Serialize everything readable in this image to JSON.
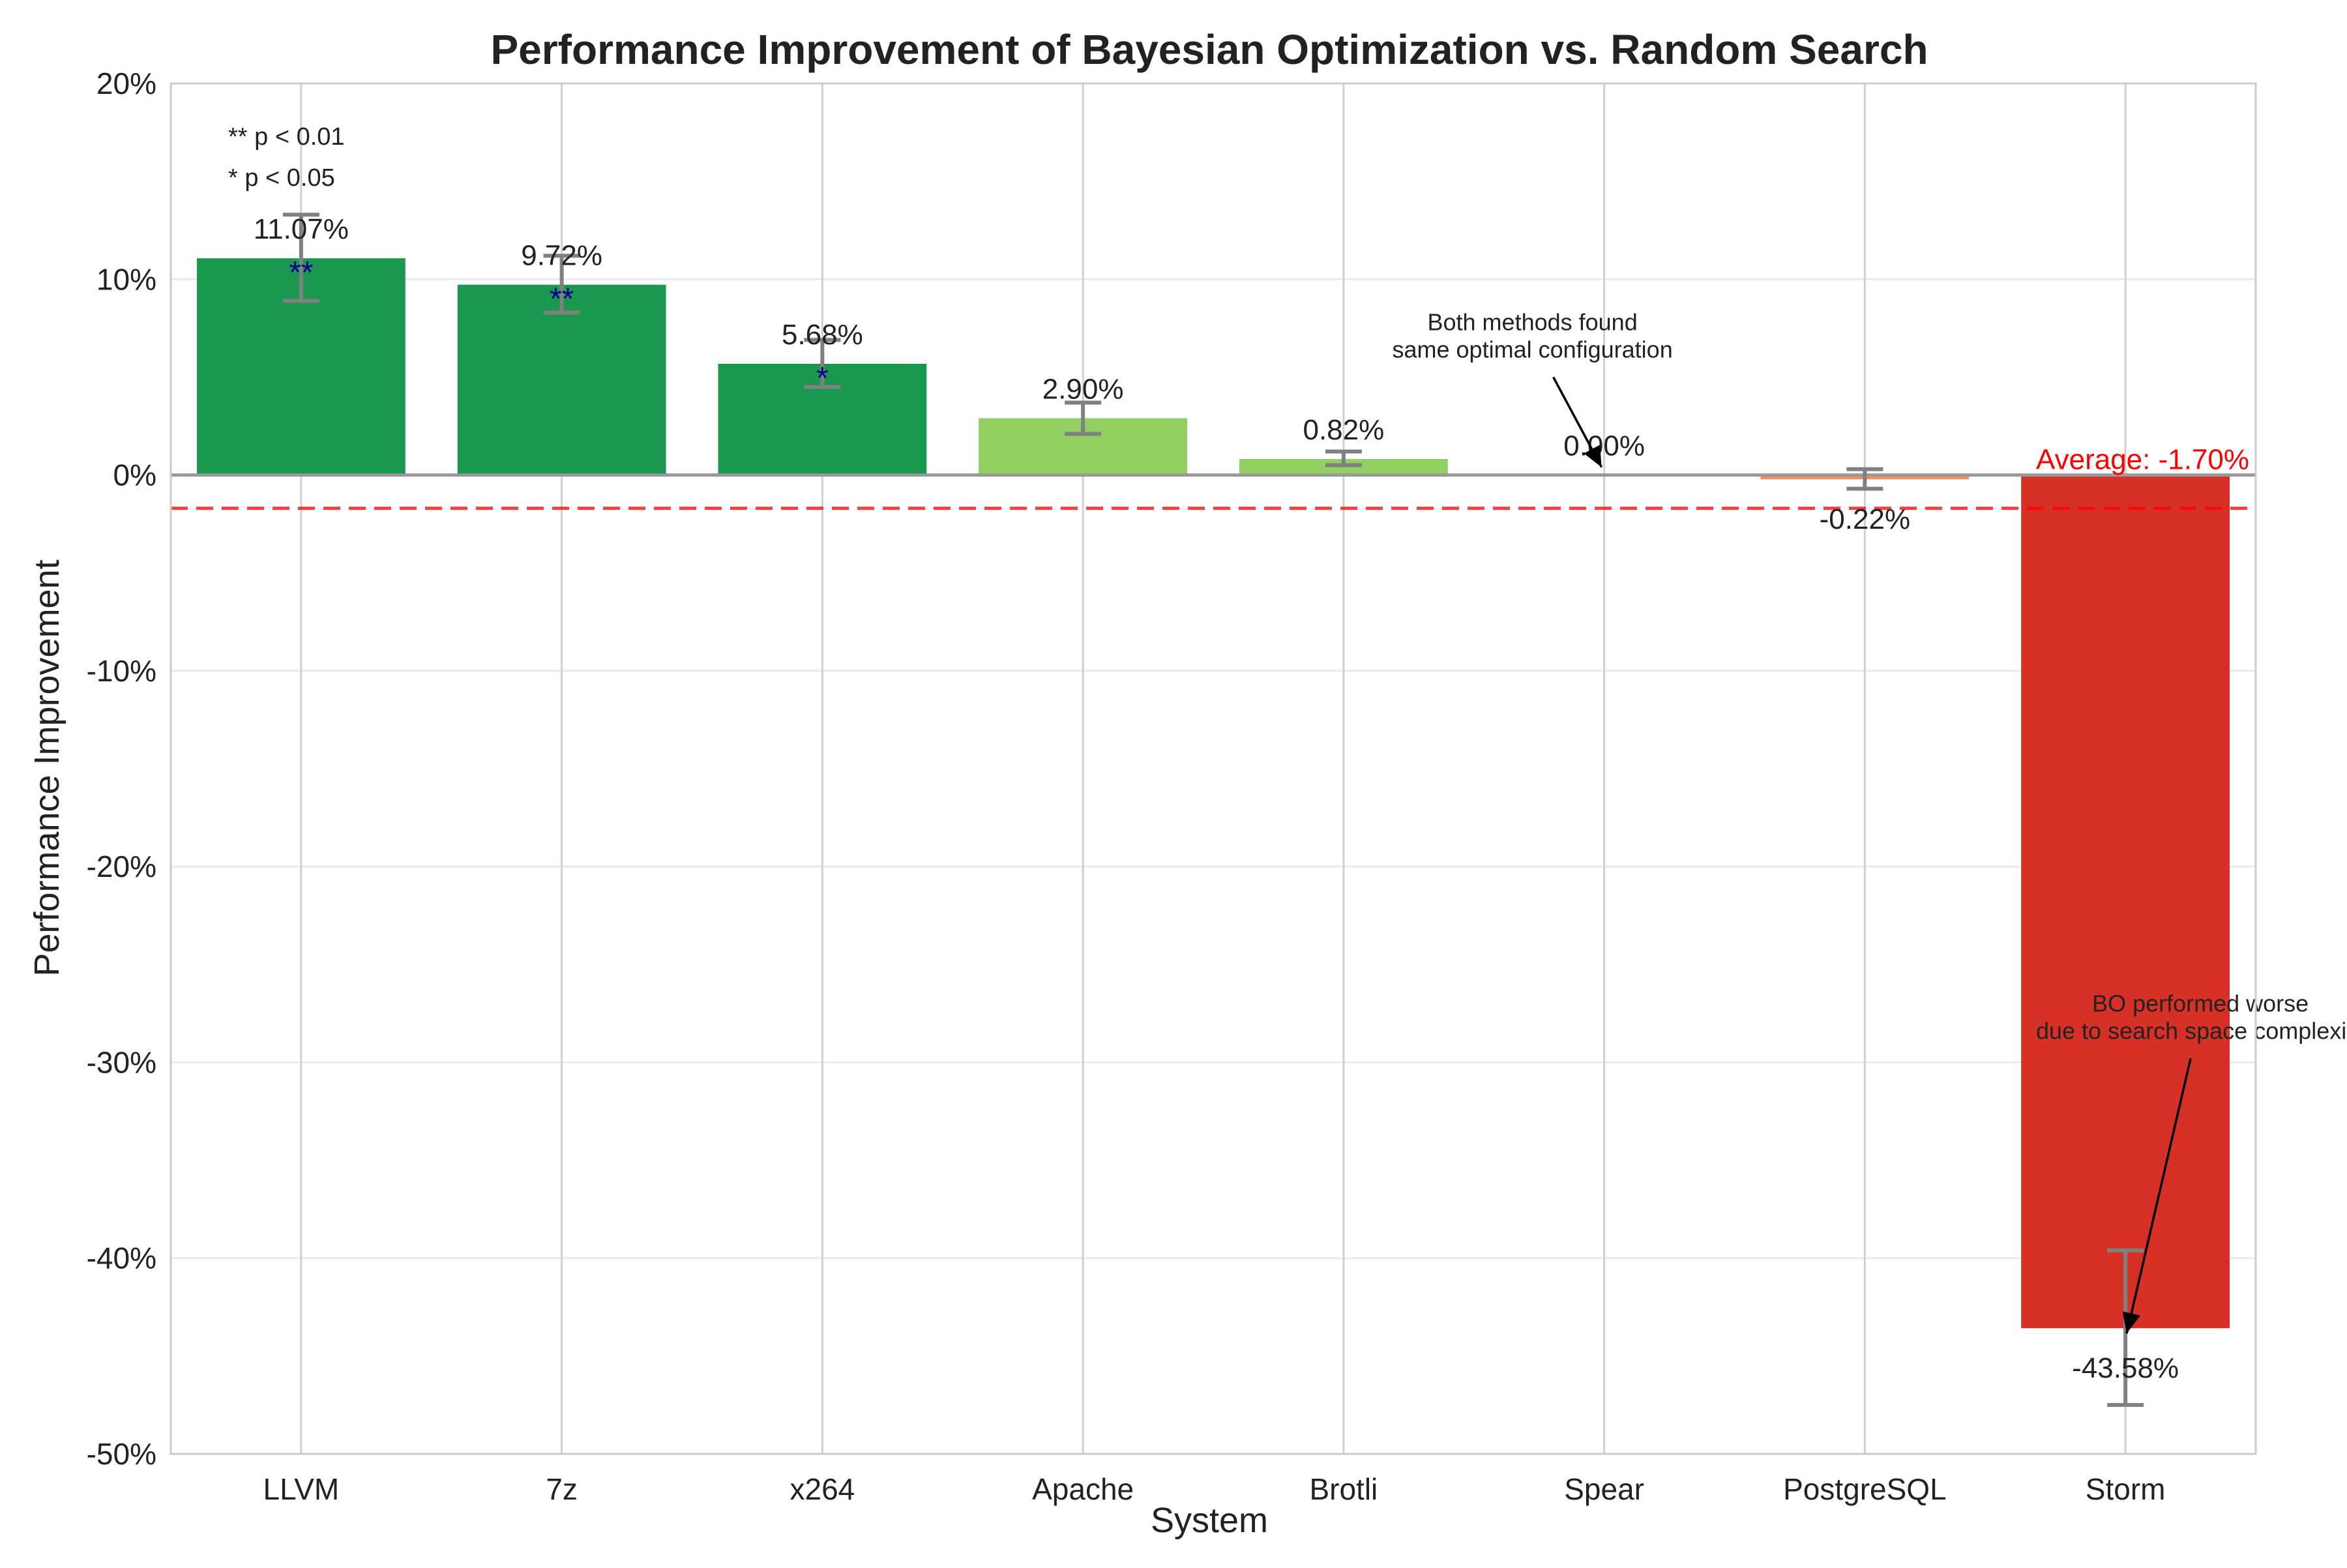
{
  "chart_data": {
    "type": "bar",
    "title": "Performance Improvement of Bayesian Optimization vs. Random Search",
    "xlabel": "System",
    "ylabel": "Performance Improvement",
    "ylim": [
      -50,
      20
    ],
    "yticks": [
      20,
      10,
      0,
      -10,
      -20,
      -30,
      -40,
      -50
    ],
    "ytick_labels": [
      "20%",
      "10%",
      "0%",
      "-10%",
      "-20%",
      "-30%",
      "-40%",
      "-50%"
    ],
    "grid": true,
    "categories": [
      "LLVM",
      "7z",
      "x264",
      "Apache",
      "Brotli",
      "Spear",
      "PostgreSQL",
      "Storm"
    ],
    "values": [
      11.07,
      9.72,
      5.68,
      2.9,
      0.82,
      0.0,
      -0.22,
      -43.58
    ],
    "value_labels": [
      "11.07%",
      "9.72%",
      "5.68%",
      "2.90%",
      "0.82%",
      "0.00%",
      "-0.22%",
      "-43.58%"
    ],
    "error_low": [
      8.9,
      8.3,
      4.5,
      2.1,
      0.5,
      0.0,
      -0.7,
      -47.5
    ],
    "error_high": [
      13.3,
      11.2,
      6.9,
      3.7,
      1.2,
      0.0,
      0.3,
      -39.6
    ],
    "significance": [
      "**",
      "**",
      "*",
      "",
      "",
      "",
      "",
      ""
    ],
    "bar_colors": [
      "#1a9850",
      "#1a9850",
      "#1a9850",
      "#91cf60",
      "#91cf60",
      "#1a9850",
      "#fc8d59",
      "#d73027"
    ],
    "error_color": "#808080",
    "significance_legend": [
      "** p < 0.01",
      "* p < 0.05"
    ],
    "average": {
      "value": -1.7,
      "label": "Average: -1.70%",
      "color": "#ff0000"
    },
    "annotations": [
      {
        "text_lines": [
          "Both methods found",
          "same optimal configuration"
        ],
        "target_category": "Spear",
        "target_value": 0.0,
        "text_value": 6.0
      },
      {
        "text_lines": [
          "BO performed worse",
          "due to search space complexity"
        ],
        "target_category": "Storm",
        "target_value": -43.58,
        "text_value": -28.8
      }
    ]
  }
}
